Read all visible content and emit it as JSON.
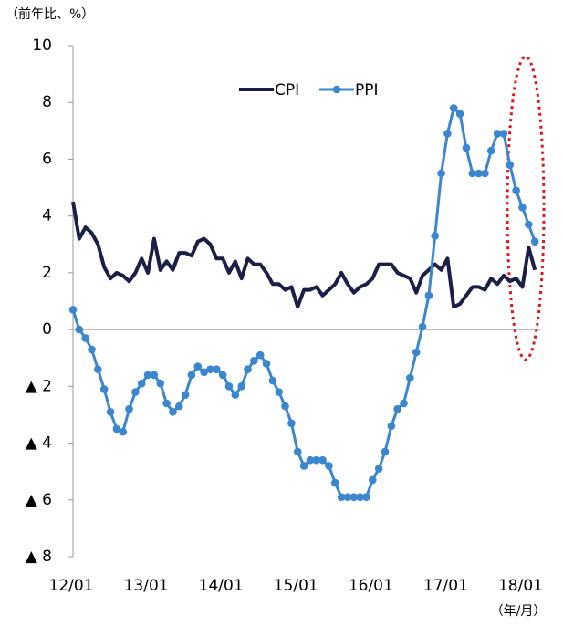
{
  "chart_data": {
    "type": "line",
    "title": "（前年比、%）",
    "x_unit": "（年/月）",
    "categories": [
      "12/01",
      null,
      null,
      null,
      null,
      null,
      null,
      null,
      null,
      null,
      null,
      null,
      "13/01",
      null,
      null,
      null,
      null,
      null,
      null,
      null,
      null,
      null,
      null,
      null,
      "14/01",
      null,
      null,
      null,
      null,
      null,
      null,
      null,
      null,
      null,
      null,
      null,
      "15/01",
      null,
      null,
      null,
      null,
      null,
      null,
      null,
      null,
      null,
      null,
      null,
      "16/01",
      null,
      null,
      null,
      null,
      null,
      null,
      null,
      null,
      null,
      null,
      null,
      "17/01",
      null,
      null,
      null,
      null,
      null,
      null,
      null,
      null,
      null,
      null,
      null,
      "18/01",
      null,
      null
    ],
    "series": [
      {
        "name": "CPI",
        "color": "#1c1f45",
        "marker": false,
        "values": [
          4.5,
          3.2,
          3.6,
          3.4,
          3.0,
          2.2,
          1.8,
          2.0,
          1.9,
          1.7,
          2.0,
          2.5,
          2.0,
          3.2,
          2.1,
          2.4,
          2.1,
          2.7,
          2.7,
          2.6,
          3.1,
          3.2,
          3.0,
          2.5,
          2.5,
          2.0,
          2.4,
          1.8,
          2.5,
          2.3,
          2.3,
          2.0,
          1.6,
          1.6,
          1.4,
          1.5,
          0.8,
          1.4,
          1.4,
          1.5,
          1.2,
          1.4,
          1.6,
          2.0,
          1.6,
          1.3,
          1.5,
          1.6,
          1.8,
          2.3,
          2.3,
          2.3,
          2.0,
          1.9,
          1.8,
          1.3,
          1.9,
          2.1,
          2.3,
          2.1,
          2.5,
          0.8,
          0.9,
          1.2,
          1.5,
          1.5,
          1.4,
          1.8,
          1.6,
          1.9,
          1.7,
          1.8,
          1.5,
          2.9,
          2.1
        ]
      },
      {
        "name": "PPI",
        "color": "#3a87cf",
        "marker": true,
        "values": [
          0.7,
          0.0,
          -0.3,
          -0.7,
          -1.4,
          -2.1,
          -2.9,
          -3.5,
          -3.6,
          -2.8,
          -2.2,
          -1.9,
          -1.6,
          -1.6,
          -1.9,
          -2.6,
          -2.9,
          -2.7,
          -2.3,
          -1.6,
          -1.3,
          -1.5,
          -1.4,
          -1.4,
          -1.6,
          -2.0,
          -2.3,
          -2.0,
          -1.4,
          -1.1,
          -0.9,
          -1.2,
          -1.8,
          -2.2,
          -2.7,
          -3.3,
          -4.3,
          -4.8,
          -4.6,
          -4.6,
          -4.6,
          -4.8,
          -5.4,
          -5.9,
          -5.9,
          -5.9,
          -5.9,
          -5.9,
          -5.3,
          -4.9,
          -4.3,
          -3.4,
          -2.8,
          -2.6,
          -1.7,
          -0.8,
          0.1,
          1.2,
          3.3,
          5.5,
          6.9,
          7.8,
          7.6,
          6.4,
          5.5,
          5.5,
          5.5,
          6.3,
          6.9,
          6.9,
          5.8,
          4.9,
          4.3,
          3.7,
          3.1
        ]
      }
    ],
    "ylim": [
      -8,
      10
    ],
    "yticks": [
      {
        "value": -8,
        "label": "▲ 8"
      },
      {
        "value": -6,
        "label": "▲ 6"
      },
      {
        "value": -4,
        "label": "▲ 4"
      },
      {
        "value": -2,
        "label": "▲ 2"
      },
      0,
      2,
      4,
      6,
      8,
      10
    ],
    "legend": "top"
  }
}
